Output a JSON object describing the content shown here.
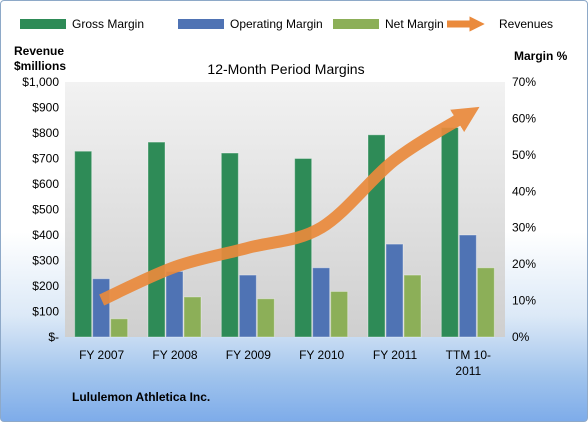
{
  "chart_data": {
    "type": "bar",
    "title": "12-Month Period Margins",
    "company": "Lululemon Athletica Inc.",
    "left_axis_label_lines": [
      "Revenue",
      "$millions"
    ],
    "right_axis_label": "Margin %",
    "left_axis": {
      "min": 0,
      "max": 1000,
      "step": 100,
      "ticks": [
        "$-",
        "$100",
        "$200",
        "$300",
        "$400",
        "$500",
        "$600",
        "$700",
        "$800",
        "$900",
        "$1,000"
      ]
    },
    "right_axis": {
      "min": 0,
      "max": 70,
      "step": 10,
      "ticks": [
        "0%",
        "10%",
        "20%",
        "30%",
        "40%",
        "50%",
        "60%",
        "70%"
      ]
    },
    "categories": [
      [
        "FY 2007"
      ],
      [
        "FY 2008"
      ],
      [
        "FY 2009"
      ],
      [
        "FY 2010"
      ],
      [
        "FY 2011"
      ],
      [
        "TTM 10-",
        "2011"
      ]
    ],
    "series": [
      {
        "name": "Gross Margin",
        "kind": "bar",
        "axis": "right",
        "color": "#2e8b57",
        "values": [
          51,
          53.5,
          50.5,
          49,
          55.5,
          57.5
        ]
      },
      {
        "name": "Operating Margin",
        "kind": "bar",
        "axis": "right",
        "color": "#4f73b4",
        "values": [
          16,
          18,
          17,
          19,
          25.5,
          28
        ]
      },
      {
        "name": "Net Margin",
        "kind": "bar",
        "axis": "right",
        "color": "#8caf58",
        "values": [
          5,
          11,
          10.5,
          12.5,
          17,
          19
        ]
      },
      {
        "name": "Revenues",
        "kind": "line",
        "axis": "left",
        "color": "#ea8a3c",
        "values": [
          145,
          275,
          350,
          430,
          695,
          875
        ]
      }
    ],
    "legend_position": "top",
    "grid": false
  }
}
